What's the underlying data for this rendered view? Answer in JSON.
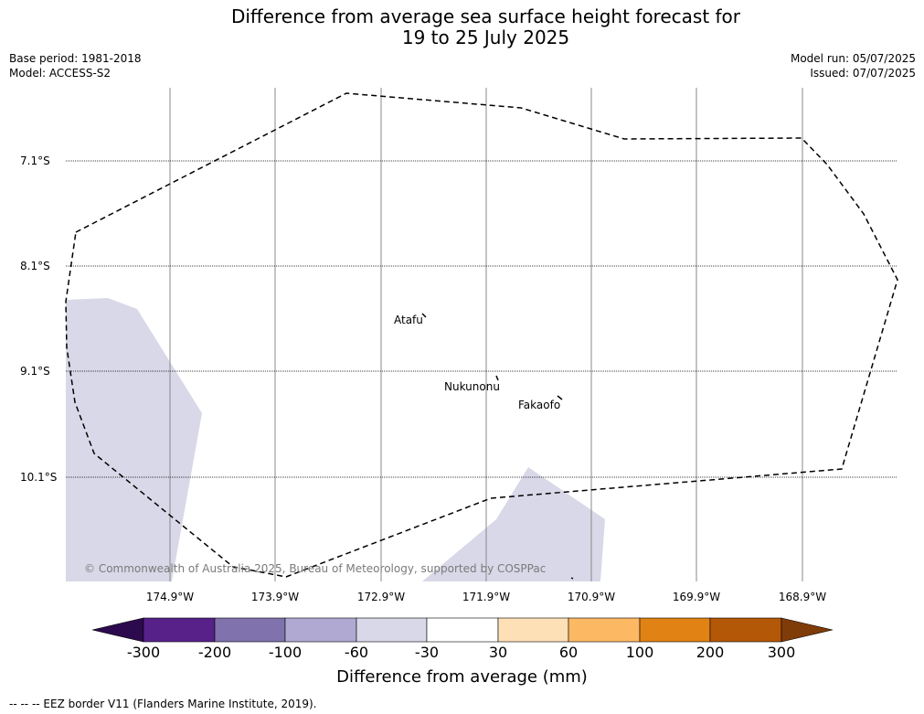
{
  "title": {
    "line1": "Difference from average sea surface height forecast for",
    "line2": "19 to 25 July 2025"
  },
  "meta": {
    "base_period": "Base period: 1981-2018",
    "model": "Model: ACCESS-S2",
    "model_run": "Model run: 05/07/2025",
    "issued": "Issued: 07/07/2025"
  },
  "map": {
    "latitude_labels": [
      "7.1°S",
      "8.1°S",
      "9.1°S",
      "10.1°S"
    ],
    "longitude_labels": [
      "174.9°W",
      "173.9°W",
      "172.9°W",
      "171.9°W",
      "170.9°W",
      "169.9°W",
      "168.9°W"
    ],
    "places": [
      "Atafu",
      "Nukunonu",
      "Fakaofo"
    ],
    "shading_color": "#d8d8e8",
    "eez_line_style": "dashed",
    "copyright": "© Commonwealth of Australia 2025, Bureau of Meteorology, supported by COSPPac"
  },
  "colorbar": {
    "ticks": [
      "-300",
      "-200",
      "-100",
      "-60",
      "-30",
      "30",
      "60",
      "100",
      "200",
      "300"
    ],
    "colors": [
      "#2d0a4d",
      "#572189",
      "#8072ad",
      "#b0aad3",
      "#d8d8e8",
      "#ffffff",
      "#fee0b6",
      "#fdb863",
      "#e08214",
      "#b35806",
      "#7f3b08"
    ],
    "label": "Difference from average (mm)"
  },
  "footnote": "--  --  -- EEZ border V11 (Flanders Marine Institute, 2019)."
}
